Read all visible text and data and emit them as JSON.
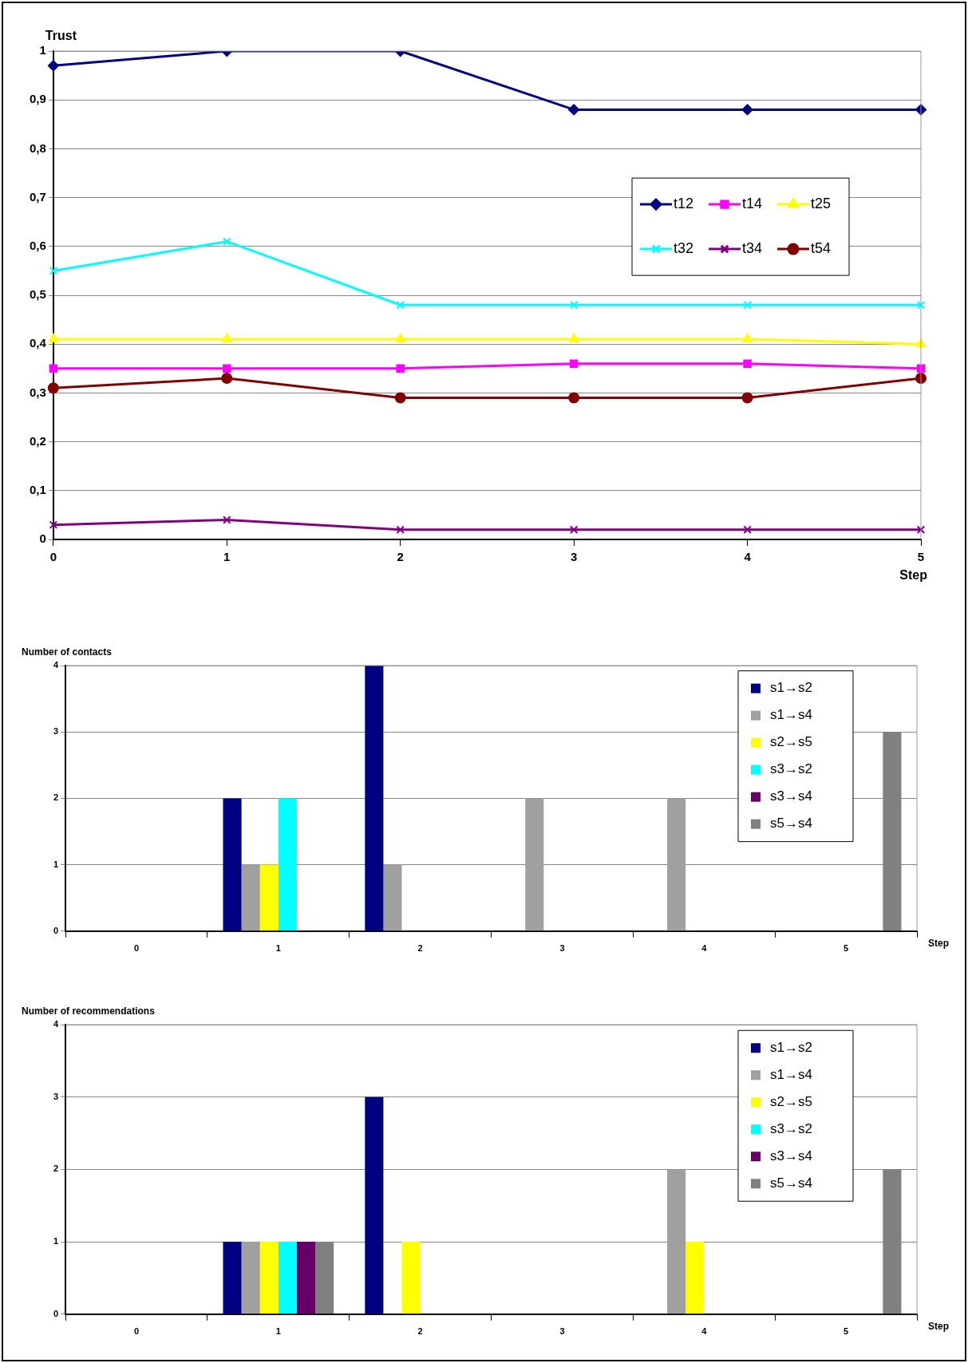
{
  "chart_data": [
    {
      "type": "line",
      "ylabel": "Trust",
      "xlabel": "Step",
      "categories": [
        "0",
        "1",
        "2",
        "3",
        "4",
        "5"
      ],
      "ylim": [
        0,
        1
      ],
      "yticks": [
        0,
        {
          "value": 0.1,
          "label": "0,1"
        },
        {
          "value": 0.2,
          "label": "0,2"
        },
        {
          "value": 0.3,
          "label": "0,3"
        },
        {
          "value": 0.4,
          "label": "0,4"
        },
        {
          "value": 0.5,
          "label": "0,5"
        },
        {
          "value": 0.6,
          "label": "0,6"
        },
        {
          "value": 0.7,
          "label": "0,7"
        },
        {
          "value": 0.8,
          "label": "0,8"
        },
        {
          "value": 0.9,
          "label": "0,9"
        },
        1
      ],
      "grid": "y",
      "legend": "top right",
      "line_style": "solid",
      "series": [
        {
          "name": "t12",
          "color": "#000080",
          "marker": "diamond",
          "values": [
            0.97,
            1.0,
            1.0,
            0.88,
            0.88,
            0.88
          ]
        },
        {
          "name": "t14",
          "color": "#ff00ff",
          "marker": "square",
          "values": [
            0.35,
            0.35,
            0.35,
            0.36,
            0.36,
            0.35
          ]
        },
        {
          "name": "t25",
          "color": "#ffff00",
          "marker": "triangle",
          "values": [
            0.41,
            0.41,
            0.41,
            0.41,
            0.41,
            0.4
          ]
        },
        {
          "name": "t32",
          "color": "#00ffff",
          "marker": "cross",
          "values": [
            0.55,
            0.61,
            0.48,
            0.48,
            0.48,
            0.48
          ]
        },
        {
          "name": "t34",
          "color": "#800080",
          "marker": "cross",
          "values": [
            0.03,
            0.04,
            0.02,
            0.02,
            0.02,
            0.02
          ]
        },
        {
          "name": "t54",
          "color": "#800000",
          "marker": "circle",
          "values": [
            0.31,
            0.33,
            0.29,
            0.29,
            0.29,
            0.33
          ]
        }
      ]
    },
    {
      "type": "bar",
      "ylabel": "Number of contacts",
      "xlabel": "Step",
      "categories": [
        "0",
        "1",
        "2",
        "3",
        "4",
        "5"
      ],
      "ylim": [
        0,
        4
      ],
      "yticks": [
        0,
        1,
        2,
        3,
        4
      ],
      "grid": "y",
      "legend": "top right",
      "series": [
        {
          "name": "s1→s2",
          "color": "#000080",
          "values": [
            0,
            2,
            4,
            0,
            0,
            0
          ]
        },
        {
          "name": "s1→s4",
          "color": "#a0a0a0",
          "values": [
            0,
            1,
            1,
            2,
            2,
            0
          ]
        },
        {
          "name": "s2→s5",
          "color": "#ffff00",
          "values": [
            0,
            1,
            0,
            0,
            0,
            0
          ]
        },
        {
          "name": "s3→s2",
          "color": "#00ffff",
          "values": [
            0,
            2,
            0,
            0,
            0,
            0
          ]
        },
        {
          "name": "s3→s4",
          "color": "#660066",
          "values": [
            0,
            0,
            0,
            0,
            0,
            0
          ]
        },
        {
          "name": "s5→s4",
          "color": "#808080",
          "values": [
            0,
            0,
            0,
            0,
            0,
            3
          ]
        }
      ]
    },
    {
      "type": "bar",
      "ylabel": "Number of recommendations",
      "xlabel": "Step",
      "categories": [
        "0",
        "1",
        "2",
        "3",
        "4",
        "5"
      ],
      "ylim": [
        0,
        4
      ],
      "yticks": [
        0,
        1,
        2,
        3,
        4
      ],
      "grid": "y",
      "legend": "top right",
      "series": [
        {
          "name": "s1→s2",
          "color": "#000080",
          "values": [
            0,
            1,
            3,
            0,
            0,
            0
          ]
        },
        {
          "name": "s1→s4",
          "color": "#a0a0a0",
          "values": [
            0,
            1,
            0,
            0,
            2,
            0
          ]
        },
        {
          "name": "s2→s5",
          "color": "#ffff00",
          "values": [
            0,
            1,
            1,
            0,
            1,
            0
          ]
        },
        {
          "name": "s3→s2",
          "color": "#00ffff",
          "values": [
            0,
            1,
            0,
            0,
            0,
            0
          ]
        },
        {
          "name": "s3→s4",
          "color": "#660066",
          "values": [
            0,
            1,
            0,
            0,
            0,
            0
          ]
        },
        {
          "name": "s5→s4",
          "color": "#808080",
          "values": [
            0,
            1,
            0,
            0,
            0,
            2
          ]
        }
      ]
    }
  ]
}
